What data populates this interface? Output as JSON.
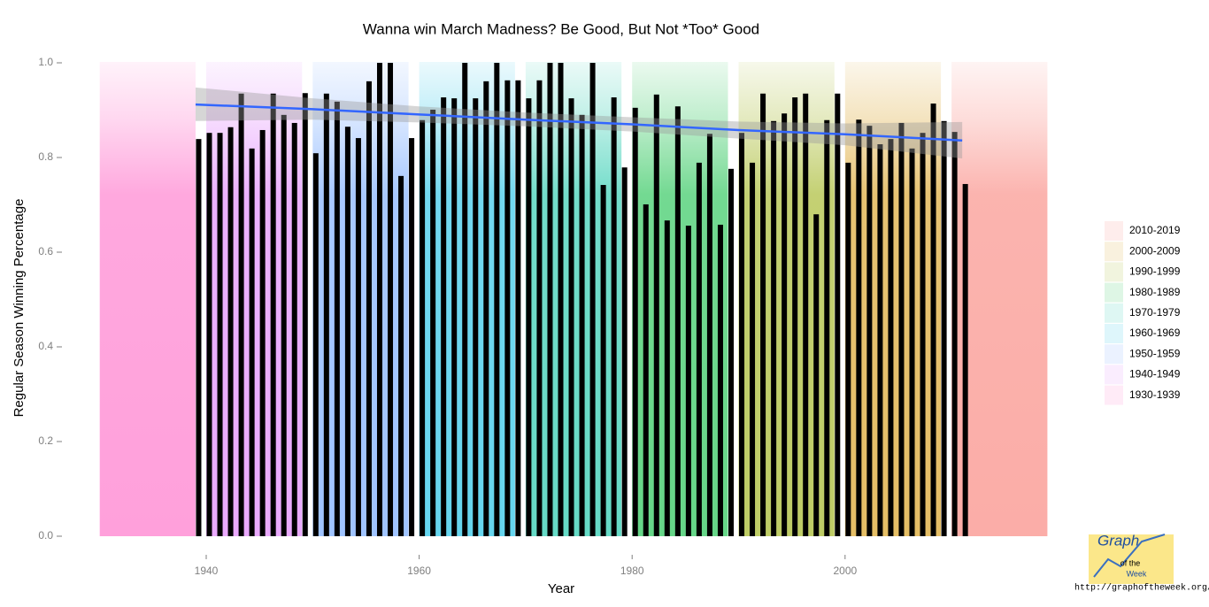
{
  "chart_data": {
    "type": "bar",
    "title": "Wanna win March Madness?  Be Good, But Not *Too* Good",
    "x_label": "Year",
    "y_label": "Regular Season Winning Percentage",
    "xlim": [
      1930,
      2019
    ],
    "ylim": [
      0,
      1
    ],
    "xticks": [
      1940,
      1960,
      1980,
      2000
    ],
    "yticks": [
      {
        "value": 0,
        "label": "0.0"
      },
      0.2,
      0.4,
      0.6,
      0.8,
      {
        "value": 1,
        "label": "1.0"
      }
    ],
    "color": "#000000",
    "x": [
      1939,
      1940,
      1941,
      1942,
      1943,
      1944,
      1945,
      1946,
      1947,
      1948,
      1949,
      1950,
      1951,
      1952,
      1953,
      1954,
      1955,
      1956,
      1957,
      1958,
      1959,
      1960,
      1961,
      1962,
      1963,
      1964,
      1965,
      1966,
      1967,
      1968,
      1969,
      1970,
      1971,
      1972,
      1973,
      1974,
      1975,
      1976,
      1977,
      1978,
      1979,
      1980,
      1981,
      1982,
      1983,
      1984,
      1985,
      1986,
      1987,
      1988,
      1989,
      1990,
      1991,
      1992,
      1993,
      1994,
      1995,
      1996,
      1997,
      1998,
      1999,
      2000,
      2001,
      2002,
      2003,
      2004,
      2005,
      2006,
      2007,
      2008,
      2009,
      2010,
      2011
    ],
    "values": [
      0.839,
      0.852,
      0.852,
      0.864,
      0.935,
      0.819,
      0.858,
      0.935,
      0.89,
      0.873,
      0.936,
      0.809,
      0.935,
      0.918,
      0.865,
      0.841,
      0.961,
      1.0,
      1.0,
      0.761,
      0.841,
      0.879,
      0.901,
      0.927,
      0.925,
      1.0,
      0.925,
      0.961,
      1.0,
      0.963,
      0.963,
      0.925,
      0.963,
      1.0,
      1.0,
      0.925,
      0.89,
      1.0,
      0.742,
      0.927,
      0.779,
      0.905,
      0.701,
      0.933,
      0.667,
      0.908,
      0.656,
      0.789,
      0.85,
      0.658,
      0.776,
      0.852,
      0.789,
      0.935,
      0.877,
      0.893,
      0.927,
      0.935,
      0.68,
      0.879,
      0.935,
      0.789,
      0.88,
      0.867,
      0.828,
      0.839,
      0.873,
      0.819,
      0.852,
      0.914,
      0.877,
      0.854,
      0.744
    ],
    "trend": {
      "color": "#3366ff",
      "x": [
        1939,
        1950,
        1960,
        1970,
        1980,
        1990,
        2000,
        2011
      ],
      "values": [
        0.912,
        0.902,
        0.891,
        0.88,
        0.87,
        0.858,
        0.849,
        0.836
      ],
      "lower": [
        0.877,
        0.88,
        0.874,
        0.866,
        0.855,
        0.84,
        0.826,
        0.798
      ],
      "upper": [
        0.948,
        0.925,
        0.908,
        0.895,
        0.885,
        0.876,
        0.872,
        0.875
      ]
    },
    "decades": [
      {
        "name": "1930-1939",
        "xmin": 1930,
        "xmax": 1939,
        "color": "#FF61C3"
      },
      {
        "name": "1940-1949",
        "xmin": 1940,
        "xmax": 1949,
        "color": "#DB72FB"
      },
      {
        "name": "1950-1959",
        "xmin": 1950,
        "xmax": 1959,
        "color": "#619CFF"
      },
      {
        "name": "1960-1969",
        "xmin": 1960,
        "xmax": 1969,
        "color": "#00B9E3"
      },
      {
        "name": "1970-1979",
        "xmin": 1970,
        "xmax": 1979,
        "color": "#00C19F"
      },
      {
        "name": "1980-1989",
        "xmin": 1980,
        "xmax": 1989,
        "color": "#00BA38"
      },
      {
        "name": "1990-1999",
        "xmin": 1990,
        "xmax": 1999,
        "color": "#93AA00"
      },
      {
        "name": "2000-2009",
        "xmin": 2000,
        "xmax": 2009,
        "color": "#D39200"
      },
      {
        "name": "2010-2019",
        "xmin": 2010,
        "xmax": 2019,
        "color": "#F8766D"
      }
    ]
  },
  "logo": {
    "title": "Graph",
    "sub1": "of the",
    "sub2": "Week",
    "url": "http://graphoftheweek.org/"
  }
}
